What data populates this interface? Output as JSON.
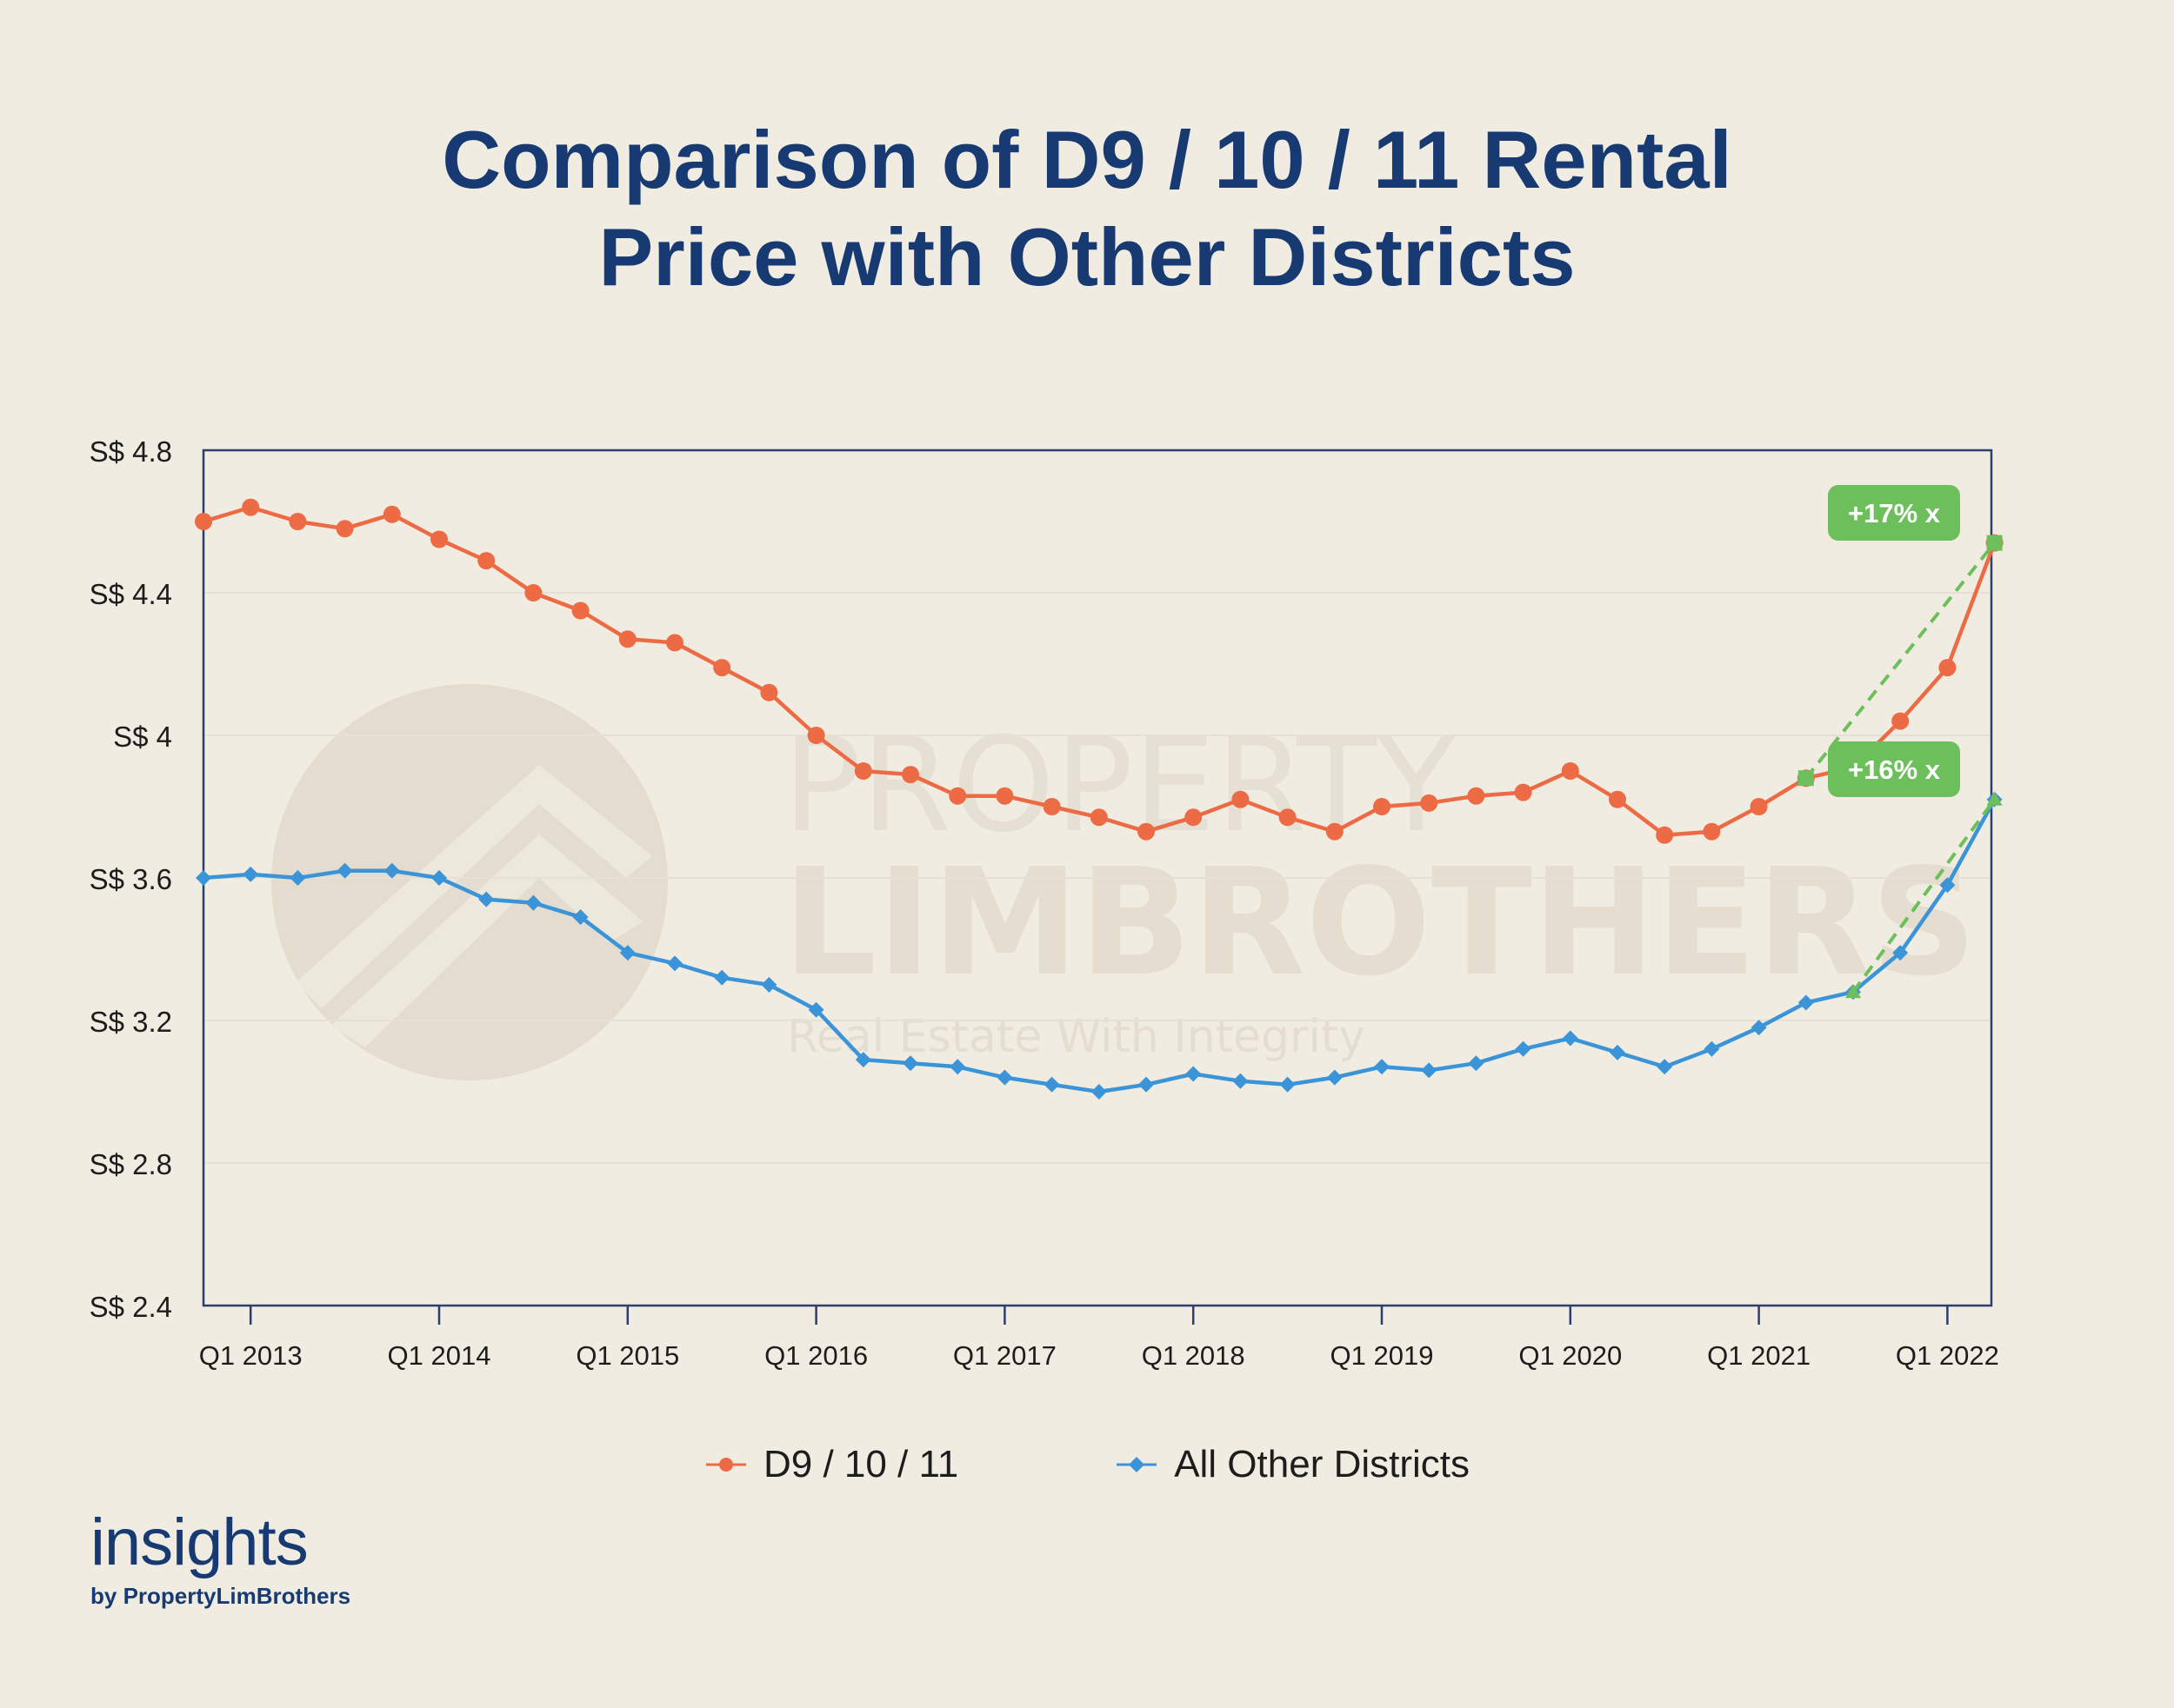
{
  "chart_data": {
    "type": "line",
    "title_lines": [
      "Comparison of D9 / 10 / 11 Rental",
      "Price with Other Districts"
    ],
    "xlabel": "",
    "ylabel": "",
    "x_tick_labels": [
      "Q1 2013",
      "Q1 2014",
      "Q1 2015",
      "Q1 2016",
      "Q1 2017",
      "Q1 2018",
      "Q1 2019",
      "Q1 2020",
      "Q1 2021",
      "Q1 2022"
    ],
    "ylim": [
      2.4,
      4.8
    ],
    "y_ticks": [
      2.4,
      2.8,
      3.2,
      3.6,
      4.0,
      4.4,
      4.8
    ],
    "y_tick_labels": [
      "S$ 2.4",
      "S$ 2.8",
      "S$ 3.2",
      "S$ 3.6",
      "S$ 4",
      "S$ 4.4",
      "S$ 4.8"
    ],
    "series": [
      {
        "name": "D9 / 10 / 11",
        "color": "#ec6a44",
        "marker": "circle",
        "values": [
          4.6,
          4.64,
          4.6,
          4.58,
          4.62,
          4.55,
          4.49,
          4.4,
          4.35,
          4.27,
          4.26,
          4.19,
          4.12,
          4.0,
          3.9,
          3.89,
          3.83,
          3.83,
          3.8,
          3.77,
          3.73,
          3.77,
          3.82,
          3.77,
          3.73,
          3.8,
          3.81,
          3.83,
          3.84,
          3.9,
          3.82,
          3.72,
          3.73,
          3.8,
          3.88,
          3.91,
          4.04,
          4.19,
          4.54
        ]
      },
      {
        "name": "All Other Districts",
        "color": "#3b94d8",
        "marker": "diamond",
        "values": [
          3.6,
          3.61,
          3.6,
          3.62,
          3.62,
          3.6,
          3.54,
          3.53,
          3.49,
          3.39,
          3.36,
          3.32,
          3.3,
          3.23,
          3.09,
          3.08,
          3.07,
          3.04,
          3.02,
          3.0,
          3.02,
          3.05,
          3.03,
          3.02,
          3.04,
          3.07,
          3.06,
          3.08,
          3.12,
          3.15,
          3.11,
          3.07,
          3.12,
          3.18,
          3.25,
          3.28,
          3.39,
          3.58,
          3.82
        ]
      }
    ],
    "annotations": [
      {
        "label": "+17% x",
        "series": 0,
        "from_index": 34,
        "to_index": 38,
        "color": "#6cbf5a"
      },
      {
        "label": "+16% x",
        "series": 1,
        "from_index": 35,
        "to_index": 38,
        "color": "#6cbf5a"
      }
    ]
  },
  "watermark": {
    "line1": "PROPERTY",
    "line2": "LIMBROTHERS",
    "tagline": "Real Estate With Integrity"
  },
  "branding": {
    "name": "insights",
    "byline": "by PropertyLimBrothers"
  },
  "colors": {
    "title": "#173a73",
    "axis": "#2b3e6e",
    "background": "#f1ece1"
  }
}
